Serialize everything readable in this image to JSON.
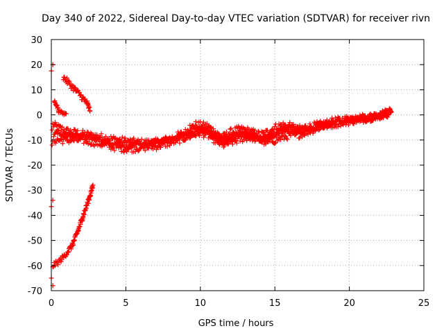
{
  "chart_data": {
    "type": "scatter",
    "title": "Day 340 of 2022, Sidereal Day-to-day VTEC variation (SDTVAR) for receiver rivn",
    "xlabel": "GPS time / hours",
    "ylabel": "SDTVAR / TECUs",
    "xlim": [
      0,
      25
    ],
    "ylim": [
      -70,
      30
    ],
    "xticks": [
      0,
      5,
      10,
      15,
      20,
      25
    ],
    "yticks": [
      -70,
      -60,
      -50,
      -40,
      -30,
      -20,
      -10,
      0,
      10,
      20,
      30
    ],
    "xtick_labels": [
      "0",
      "5",
      "10",
      "15",
      "20",
      "25"
    ],
    "ytick_labels": [
      "-70",
      "-60",
      "-50",
      "-40",
      "-30",
      "-20",
      "-10",
      "0",
      "10",
      "20",
      "30"
    ],
    "grid": true,
    "marker": "+",
    "series_color": "#ff0000",
    "series": [
      {
        "name": "main-band-upper",
        "band_width": 1.5,
        "points": [
          [
            0.1,
            -4
          ],
          [
            1.0,
            -6.5
          ],
          [
            2.0,
            -7.5
          ],
          [
            3.0,
            -8.5
          ],
          [
            4.0,
            -9.5
          ],
          [
            5.0,
            -10.5
          ],
          [
            6.0,
            -11
          ],
          [
            7.0,
            -11
          ],
          [
            8.0,
            -9.5
          ],
          [
            9.0,
            -7
          ],
          [
            9.7,
            -4
          ],
          [
            10.5,
            -4.5
          ],
          [
            11.0,
            -7
          ],
          [
            11.5,
            -9
          ],
          [
            12.0,
            -7
          ],
          [
            12.5,
            -6
          ],
          [
            13.0,
            -6
          ],
          [
            13.5,
            -7
          ],
          [
            14.0,
            -8
          ],
          [
            14.5,
            -7
          ],
          [
            15.0,
            -5
          ],
          [
            15.5,
            -4
          ],
          [
            16.0,
            -5
          ],
          [
            16.5,
            -6
          ],
          [
            17.0,
            -5
          ],
          [
            18.0,
            -4
          ],
          [
            19.0,
            -2.5
          ],
          [
            20.0,
            -1.5
          ],
          [
            21.0,
            -1
          ],
          [
            22.0,
            0
          ],
          [
            22.8,
            1.5
          ]
        ]
      },
      {
        "name": "main-band-lower",
        "band_width": 1.5,
        "points": [
          [
            0.1,
            -10
          ],
          [
            1.0,
            -10
          ],
          [
            2.0,
            -10
          ],
          [
            3.0,
            -11
          ],
          [
            4.0,
            -12.5
          ],
          [
            5.0,
            -13.5
          ],
          [
            6.0,
            -13
          ],
          [
            7.0,
            -12.5
          ],
          [
            8.0,
            -11
          ],
          [
            9.0,
            -9
          ],
          [
            10.0,
            -7
          ],
          [
            10.5,
            -8
          ],
          [
            11.0,
            -10
          ],
          [
            11.5,
            -12
          ],
          [
            12.0,
            -11
          ],
          [
            12.5,
            -10
          ],
          [
            13.0,
            -9
          ],
          [
            13.5,
            -9
          ],
          [
            14.0,
            -10
          ],
          [
            14.5,
            -11
          ],
          [
            15.0,
            -10
          ],
          [
            15.5,
            -9
          ],
          [
            16.0,
            -8
          ],
          [
            16.5,
            -8
          ],
          [
            17.0,
            -7
          ],
          [
            18.0,
            -5
          ],
          [
            19.0,
            -3.5
          ],
          [
            20.0,
            -2.5
          ],
          [
            21.0,
            -1.5
          ],
          [
            22.0,
            -0.5
          ],
          [
            22.8,
            1
          ]
        ]
      },
      {
        "name": "main-band-middle",
        "band_width": 1.2,
        "points": [
          [
            0.2,
            -7
          ],
          [
            1.0,
            -8
          ],
          [
            2.0,
            -8.5
          ],
          [
            3.0,
            -9.5
          ],
          [
            4.0,
            -11
          ],
          [
            5.0,
            -12
          ],
          [
            6.0,
            -12
          ],
          [
            7.0,
            -11
          ],
          [
            8.0,
            -10
          ],
          [
            9.0,
            -8
          ],
          [
            10.0,
            -6
          ],
          [
            10.5,
            -6.5
          ],
          [
            11.0,
            -8
          ],
          [
            11.5,
            -10
          ],
          [
            12.0,
            -9
          ],
          [
            12.5,
            -8
          ],
          [
            13.0,
            -7.5
          ],
          [
            13.5,
            -8
          ],
          [
            14.0,
            -9
          ],
          [
            14.5,
            -9
          ],
          [
            15.0,
            -7.5
          ],
          [
            15.5,
            -6.5
          ],
          [
            16.0,
            -6.5
          ],
          [
            16.5,
            -7
          ],
          [
            17.0,
            -6
          ],
          [
            18.0,
            -4.5
          ],
          [
            19.0,
            -3
          ],
          [
            20.0,
            -2
          ],
          [
            21.0,
            -1.2
          ],
          [
            22.0,
            -0.2
          ],
          [
            22.8,
            1.2
          ]
        ]
      },
      {
        "name": "crossing-loops",
        "band_width": 1.0,
        "points": [
          [
            9.3,
            -5
          ],
          [
            10.0,
            -5
          ],
          [
            10.5,
            -7
          ],
          [
            11.0,
            -9
          ],
          [
            11.5,
            -10.5
          ],
          [
            12.0,
            -9.5
          ],
          [
            12.5,
            -7.5
          ],
          [
            13.0,
            -7
          ],
          [
            13.5,
            -8.5
          ],
          [
            14.0,
            -10
          ],
          [
            14.5,
            -10
          ],
          [
            15.0,
            -8
          ],
          [
            15.5,
            -5.5
          ],
          [
            16.0,
            -4
          ],
          [
            16.5,
            -5.5
          ],
          [
            17.0,
            -6.5
          ]
        ]
      },
      {
        "name": "descending-arc",
        "band_width": 1.2,
        "points": [
          [
            0.8,
            15
          ],
          [
            1.2,
            12.5
          ],
          [
            1.6,
            10
          ],
          [
            2.0,
            7.5
          ],
          [
            2.4,
            4.5
          ],
          [
            2.6,
            1.5
          ]
        ]
      },
      {
        "name": "ascending-arc",
        "band_width": 1.0,
        "points": [
          [
            0.1,
            -60
          ],
          [
            0.5,
            -58.5
          ],
          [
            0.9,
            -56
          ],
          [
            1.4,
            -52
          ],
          [
            1.8,
            -46
          ],
          [
            2.2,
            -39
          ],
          [
            2.5,
            -34
          ],
          [
            2.8,
            -28
          ]
        ]
      },
      {
        "name": "short-arc-near-zero",
        "band_width": 0.6,
        "points": [
          [
            0.2,
            5.5
          ],
          [
            0.35,
            4
          ],
          [
            0.5,
            1.5
          ],
          [
            0.8,
            0.5
          ],
          [
            1.0,
            0.5
          ]
        ]
      },
      {
        "name": "isolated-points",
        "band_width": 0,
        "points": [
          [
            0.1,
            20
          ],
          [
            0.0,
            17.5
          ],
          [
            0.05,
            -6
          ],
          [
            0.05,
            -12
          ],
          [
            0.1,
            -34
          ],
          [
            0.0,
            -36.5
          ],
          [
            0.0,
            -65
          ],
          [
            0.1,
            -68
          ]
        ]
      }
    ]
  }
}
